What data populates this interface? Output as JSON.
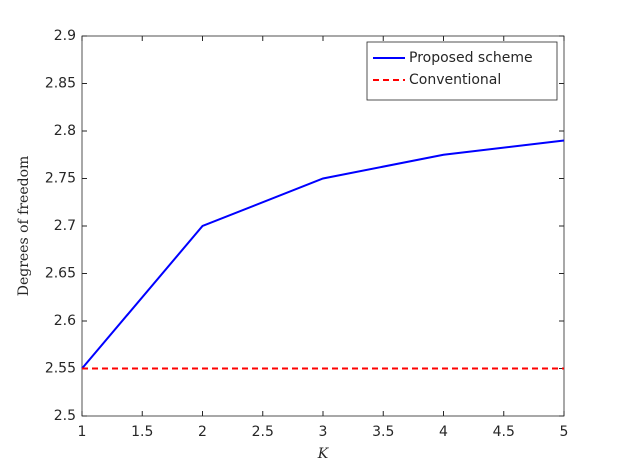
{
  "chart_data": {
    "type": "line",
    "xlabel": "K",
    "ylabel": "Degrees of freedom",
    "x": [
      1,
      2,
      3,
      4,
      5
    ],
    "series": [
      {
        "name": "Proposed scheme",
        "color": "#0000ff",
        "linestyle": "solid",
        "values": [
          2.55,
          2.7,
          2.75,
          2.775,
          2.79
        ]
      },
      {
        "name": "Conventional",
        "color": "#ff0000",
        "linestyle": "dashed",
        "values": [
          2.55,
          2.55,
          2.55,
          2.55,
          2.55
        ]
      }
    ],
    "xlim": [
      1,
      5
    ],
    "xticks": [
      1,
      1.5,
      2,
      2.5,
      3,
      3.5,
      4,
      4.5,
      5
    ],
    "ylim": [
      2.5,
      2.9
    ],
    "yticks": [
      2.5,
      2.55,
      2.6,
      2.65,
      2.7,
      2.75,
      2.8,
      2.85,
      2.9
    ],
    "grid": false,
    "legend": "northeast"
  }
}
